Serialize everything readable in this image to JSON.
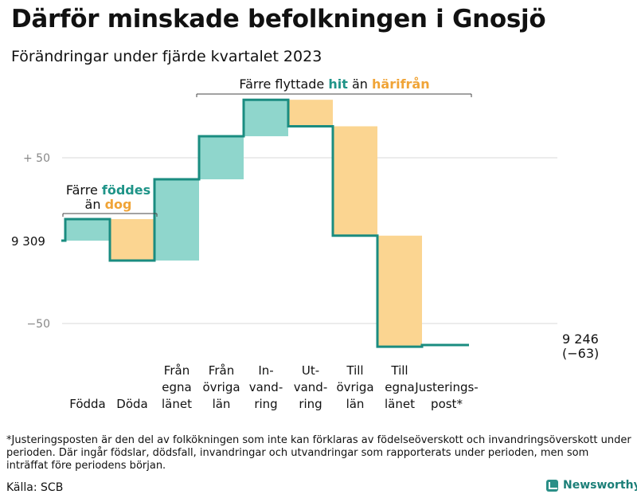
{
  "title": "Därför minskade befolkningen i Gnosjö",
  "subtitle": "Förändringar under fjärde kvartalet 2023",
  "chart_data": {
    "type": "waterfall",
    "start_value": 9309,
    "start_label": "9 309",
    "end_label": "9 246",
    "end_change_label": "(−63)",
    "y_ticks": [
      {
        "value": 50,
        "label": "+ 50"
      },
      {
        "value": -50,
        "label": "−50"
      }
    ],
    "ylim": [
      -64,
      85
    ],
    "grid": true,
    "steps": [
      {
        "label_lines": [
          "Födda"
        ],
        "value": 13,
        "kind": "inflow"
      },
      {
        "label_lines": [
          "Döda"
        ],
        "value": -25,
        "kind": "outflow"
      },
      {
        "label_lines": [
          "Från",
          "egna",
          "länet"
        ],
        "value": 49,
        "kind": "inflow"
      },
      {
        "label_lines": [
          "Från",
          "övriga",
          "län"
        ],
        "value": 26,
        "kind": "inflow"
      },
      {
        "label_lines": [
          "In-",
          "vand-",
          "ring"
        ],
        "value": 22,
        "kind": "inflow"
      },
      {
        "label_lines": [
          "Ut-",
          "vand-",
          "ring"
        ],
        "value": -16,
        "kind": "outflow"
      },
      {
        "label_lines": [
          "Till",
          "övriga",
          "län"
        ],
        "value": -66,
        "kind": "outflow"
      },
      {
        "label_lines": [
          "Till",
          "egna",
          "länet"
        ],
        "value": -67,
        "kind": "outflow"
      },
      {
        "label_lines": [
          "Justerings-",
          "post*"
        ],
        "value": 1,
        "kind": "adjustment"
      }
    ],
    "annotations": [
      {
        "group": "births",
        "lines": [
          [
            {
              "text": "Färre ",
              "role": "plain"
            },
            {
              "text": "föddes",
              "role": "inflow"
            }
          ],
          [
            {
              "text": "än ",
              "role": "plain"
            },
            {
              "text": "dog",
              "role": "outflow"
            }
          ]
        ]
      },
      {
        "group": "migration",
        "lines": [
          [
            {
              "text": "Färre flyttade ",
              "role": "plain"
            },
            {
              "text": "hit",
              "role": "inflow"
            },
            {
              "text": " än ",
              "role": "plain"
            },
            {
              "text": "härifrån",
              "role": "outflow"
            }
          ]
        ]
      }
    ],
    "colors": {
      "inflow_fill": "#8fd6cc",
      "inflow_text": "#1f9488",
      "outflow_fill": "#fbd591",
      "outflow_text": "#f0a437",
      "line": "#1a8c80",
      "grid": "#d9d9d9",
      "tick_text": "#888888"
    }
  },
  "footnote": "*Justeringsposten är den del av folkökningen som inte kan förklaras av födelseöverskott och invandringsöverskott under perioden. Där ingår födslar, dödsfall, invandringar och utvandringar som rapporterats under perioden, men som inträffat före periodens början.",
  "source": "Källa: SCB",
  "brand": "Newsworthy"
}
